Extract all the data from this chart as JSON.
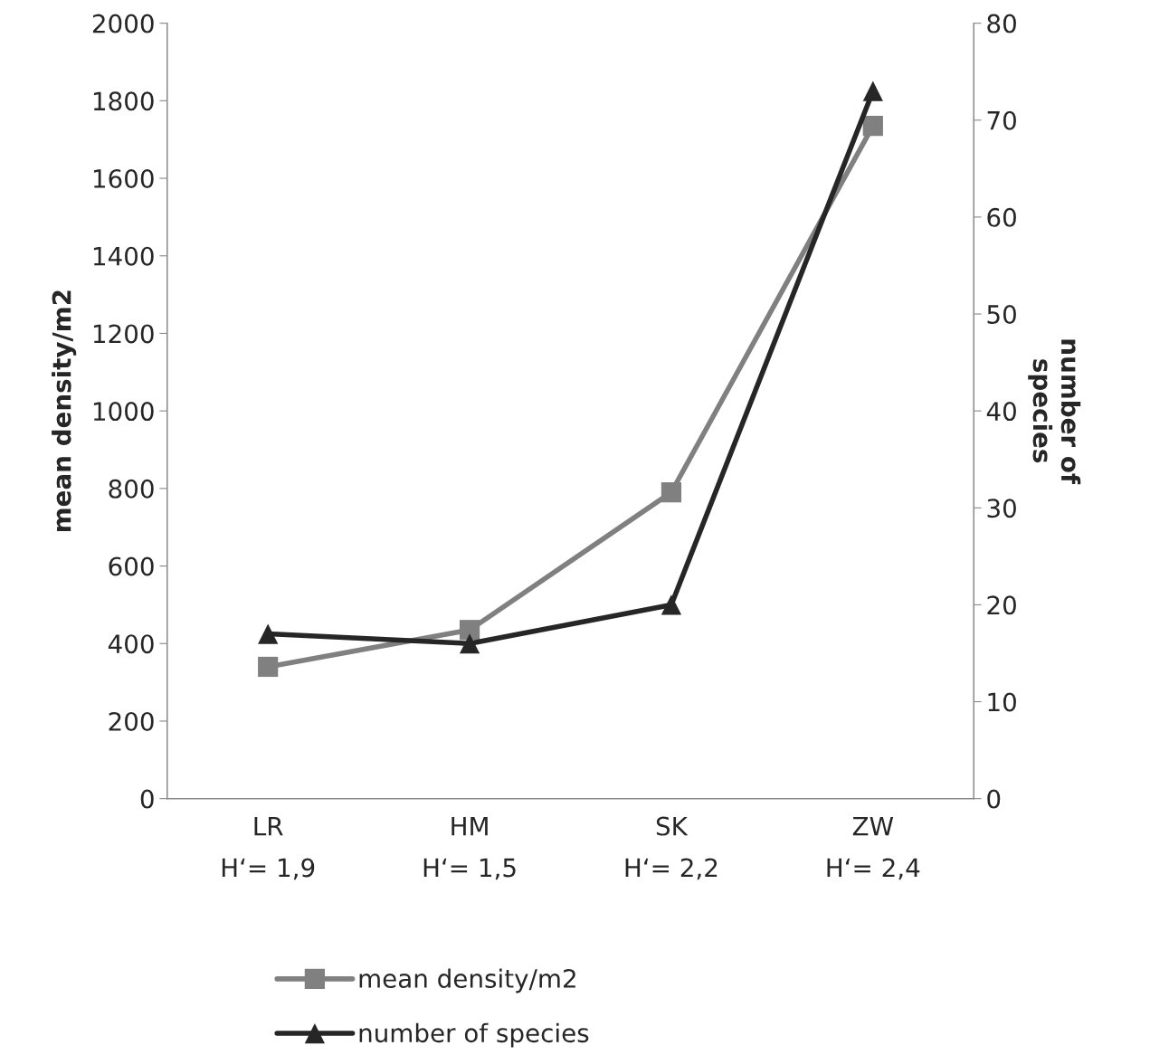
{
  "chart_data": {
    "type": "line",
    "categories": [
      "LR\nH‘= 1,9",
      "HM\nH‘= 1,5",
      "SK\nH‘= 2,2",
      "ZW\nH‘= 2,4"
    ],
    "series": [
      {
        "name": "mean density/m2",
        "color": "#808080",
        "values": [
          340,
          435,
          790,
          1735
        ],
        "marker": "square"
      },
      {
        "name": "number of species",
        "color": "#262626",
        "values": [
          17,
          16,
          20,
          73
        ],
        "marker": "triangle",
        "axis": "y2"
      }
    ],
    "ylabel": "mean density/m2",
    "y2label": "number of\nspecies",
    "ylim": [
      0,
      2000
    ],
    "yticks": [
      0,
      200,
      400,
      600,
      800,
      1000,
      1200,
      1400,
      1600,
      1800,
      2000
    ],
    "y2lim": [
      0,
      80
    ],
    "y2ticks": [
      0,
      10,
      20,
      30,
      40,
      50,
      60,
      70,
      80
    ],
    "grid": false,
    "legend": "bottom",
    "line_style": "solid"
  }
}
